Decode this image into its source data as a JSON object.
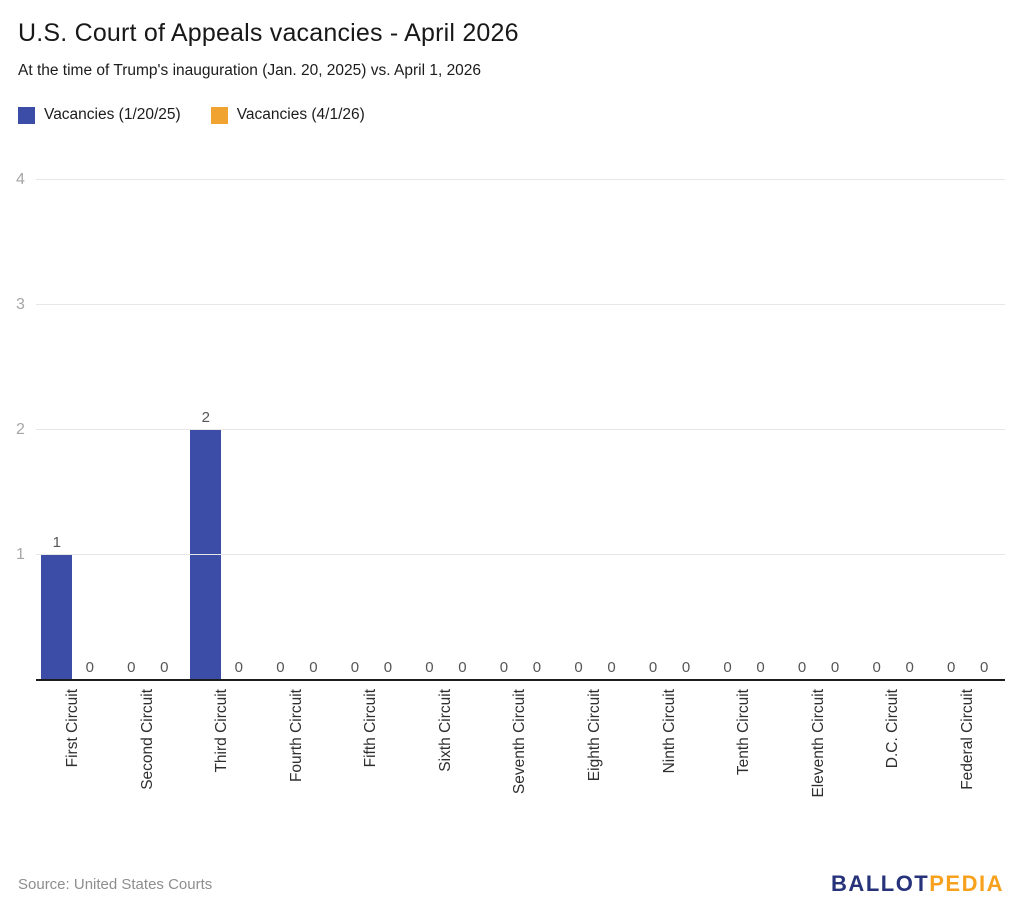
{
  "header": {
    "title": "U.S. Court of Appeals vacancies - April 2026",
    "subtitle": "At the time of Trump's inauguration (Jan. 20, 2025) vs. April 1, 2026"
  },
  "legend": [
    {
      "label": "Vacancies (1/20/25)",
      "color": "#3b4da6"
    },
    {
      "label": "Vacancies (4/1/26)",
      "color": "#f0a330"
    }
  ],
  "chart_data": {
    "type": "bar",
    "title": "U.S. Court of Appeals vacancies - April 2026",
    "subtitle": "At the time of Trump's inauguration (Jan. 20, 2025) vs. April 1, 2026",
    "categories": [
      "First Circuit",
      "Second Circuit",
      "Third Circuit",
      "Fourth Circuit",
      "Fifth Circuit",
      "Sixth Circuit",
      "Seventh Circuit",
      "Eighth Circuit",
      "Ninth Circuit",
      "Tenth Circuit",
      "Eleventh Circuit",
      "D.C. Circuit",
      "Federal Circuit"
    ],
    "series": [
      {
        "name": "Vacancies (1/20/25)",
        "color": "#3b4da6",
        "values": [
          1,
          0,
          2,
          0,
          0,
          0,
          0,
          0,
          0,
          0,
          0,
          0,
          0
        ]
      },
      {
        "name": "Vacancies (4/1/26)",
        "color": "#f0a330",
        "values": [
          0,
          0,
          0,
          0,
          0,
          0,
          0,
          0,
          0,
          0,
          0,
          0,
          0
        ]
      }
    ],
    "xlabel": "",
    "ylabel": "",
    "ylim": [
      0,
      4
    ],
    "yticks": [
      1,
      2,
      3,
      4
    ],
    "grid": true,
    "legend_position": "top",
    "bar_value_labels": true
  },
  "footer": {
    "source": "Source: United States Courts",
    "logo": {
      "part1": "BALLOT",
      "part2": "PEDIA",
      "color1": "#26337b",
      "color2": "#f7a11e"
    }
  }
}
